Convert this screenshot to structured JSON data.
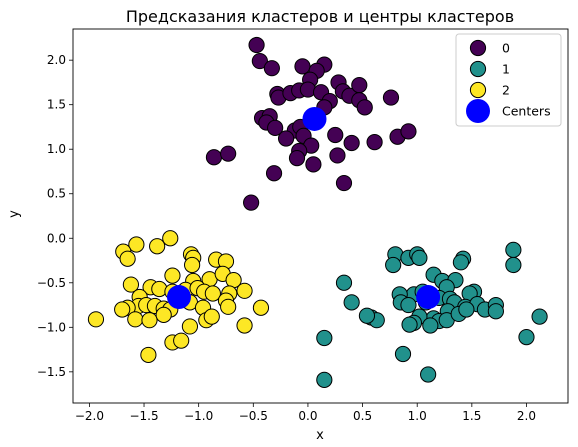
{
  "chart_data": {
    "type": "scatter",
    "title": "Предсказания кластеров и центры кластеров",
    "xlabel": "x",
    "ylabel": "y",
    "xlim": [
      -2.15,
      2.38
    ],
    "ylim": [
      -1.85,
      2.35
    ],
    "xticks": [
      -2.0,
      -1.5,
      -1.0,
      -0.5,
      0.0,
      0.5,
      1.0,
      1.5,
      2.0
    ],
    "xtick_labels": [
      "−2.0",
      "−1.5",
      "−1.0",
      "−0.5",
      "0.0",
      "0.5",
      "1.0",
      "1.5",
      "2.0"
    ],
    "yticks": [
      -1.5,
      -1.0,
      -0.5,
      0.0,
      0.5,
      1.0,
      1.5,
      2.0
    ],
    "ytick_labels": [
      "−1.5",
      "−1.0",
      "−0.5",
      "0.0",
      "0.5",
      "1.0",
      "1.5",
      "2.0"
    ],
    "grid": false,
    "legend_position": "top-right",
    "series": [
      {
        "name": "0",
        "color": "#440154",
        "points": [
          [
            -0.47,
            2.17
          ],
          [
            -0.44,
            1.99
          ],
          [
            -0.33,
            1.91
          ],
          [
            0.15,
            1.95
          ],
          [
            -0.05,
            1.93
          ],
          [
            0.08,
            1.88
          ],
          [
            0.02,
            1.78
          ],
          [
            -0.28,
            1.62
          ],
          [
            -0.27,
            1.58
          ],
          [
            -0.16,
            1.63
          ],
          [
            -0.08,
            1.66
          ],
          [
            0.0,
            1.67
          ],
          [
            0.12,
            1.64
          ],
          [
            0.2,
            1.54
          ],
          [
            0.15,
            1.47
          ],
          [
            0.28,
            1.75
          ],
          [
            0.32,
            1.65
          ],
          [
            0.38,
            1.6
          ],
          [
            0.47,
            1.72
          ],
          [
            0.47,
            1.55
          ],
          [
            0.52,
            1.47
          ],
          [
            0.76,
            1.58
          ],
          [
            -0.42,
            1.35
          ],
          [
            -0.35,
            1.37
          ],
          [
            -0.38,
            1.3
          ],
          [
            -0.3,
            1.24
          ],
          [
            -0.12,
            1.21
          ],
          [
            -0.07,
            1.25
          ],
          [
            -0.04,
            1.15
          ],
          [
            -0.2,
            1.12
          ],
          [
            0.03,
            1.04
          ],
          [
            -0.08,
            0.98
          ],
          [
            -0.1,
            0.9
          ],
          [
            0.25,
            1.16
          ],
          [
            0.4,
            1.07
          ],
          [
            0.61,
            1.08
          ],
          [
            0.82,
            1.14
          ],
          [
            0.92,
            1.2
          ],
          [
            -0.86,
            0.91
          ],
          [
            -0.73,
            0.95
          ],
          [
            0.27,
            0.93
          ],
          [
            0.05,
            0.83
          ],
          [
            -0.31,
            0.73
          ],
          [
            0.33,
            0.62
          ],
          [
            -0.52,
            0.4
          ]
        ]
      },
      {
        "name": "1",
        "color": "#21918c",
        "points": [
          [
            0.8,
            -0.18
          ],
          [
            0.78,
            -0.3
          ],
          [
            0.92,
            -0.22
          ],
          [
            1.0,
            -0.18
          ],
          [
            1.02,
            -0.22
          ],
          [
            1.42,
            -0.23
          ],
          [
            1.4,
            -0.27
          ],
          [
            1.88,
            -0.13
          ],
          [
            1.88,
            -0.3
          ],
          [
            1.15,
            -0.41
          ],
          [
            1.23,
            -0.48
          ],
          [
            1.35,
            -0.47
          ],
          [
            1.27,
            -0.55
          ],
          [
            1.52,
            -0.6
          ],
          [
            1.48,
            -0.62
          ],
          [
            0.97,
            -0.63
          ],
          [
            1.05,
            -0.6
          ],
          [
            0.84,
            -0.63
          ],
          [
            0.85,
            -0.72
          ],
          [
            0.92,
            -0.75
          ],
          [
            1.08,
            -0.72
          ],
          [
            1.2,
            -0.67
          ],
          [
            1.3,
            -0.68
          ],
          [
            1.34,
            -0.72
          ],
          [
            1.44,
            -0.77
          ],
          [
            1.55,
            -0.74
          ],
          [
            1.62,
            -0.8
          ],
          [
            1.72,
            -0.75
          ],
          [
            1.72,
            -0.82
          ],
          [
            1.28,
            -0.82
          ],
          [
            1.15,
            -0.9
          ],
          [
            1.2,
            -0.93
          ],
          [
            1.27,
            -0.92
          ],
          [
            1.02,
            -0.88
          ],
          [
            0.97,
            -0.95
          ],
          [
            0.93,
            -0.97
          ],
          [
            1.12,
            -0.98
          ],
          [
            1.38,
            -0.85
          ],
          [
            1.45,
            -0.8
          ],
          [
            0.33,
            -0.5
          ],
          [
            0.4,
            -0.72
          ],
          [
            0.58,
            -0.89
          ],
          [
            0.63,
            -0.92
          ],
          [
            0.54,
            -0.87
          ],
          [
            2.12,
            -0.88
          ],
          [
            2.0,
            -1.11
          ],
          [
            0.15,
            -1.12
          ],
          [
            0.87,
            -1.3
          ],
          [
            1.1,
            -1.53
          ],
          [
            0.15,
            -1.59
          ]
        ]
      },
      {
        "name": "2",
        "color": "#fde725",
        "points": [
          [
            -1.57,
            -0.07
          ],
          [
            -1.69,
            -0.15
          ],
          [
            -1.65,
            -0.23
          ],
          [
            -1.38,
            -0.09
          ],
          [
            -1.26,
            0.0
          ],
          [
            -1.07,
            -0.18
          ],
          [
            -1.05,
            -0.22
          ],
          [
            -1.06,
            -0.3
          ],
          [
            -0.84,
            -0.24
          ],
          [
            -0.75,
            -0.26
          ],
          [
            -1.62,
            -0.52
          ],
          [
            -1.24,
            -0.42
          ],
          [
            -1.05,
            -0.48
          ],
          [
            -0.9,
            -0.46
          ],
          [
            -0.78,
            -0.4
          ],
          [
            -0.68,
            -0.47
          ],
          [
            -0.58,
            -0.59
          ],
          [
            -1.44,
            -0.55
          ],
          [
            -1.36,
            -0.57
          ],
          [
            -1.24,
            -0.6
          ],
          [
            -1.12,
            -0.58
          ],
          [
            -1.01,
            -0.56
          ],
          [
            -0.95,
            -0.6
          ],
          [
            -0.87,
            -0.62
          ],
          [
            -0.72,
            -0.62
          ],
          [
            -1.54,
            -0.66
          ],
          [
            -1.55,
            -0.76
          ],
          [
            -1.65,
            -0.78
          ],
          [
            -1.48,
            -0.75
          ],
          [
            -1.4,
            -0.76
          ],
          [
            -1.32,
            -0.79
          ],
          [
            -1.26,
            -0.8
          ],
          [
            -1.08,
            -0.72
          ],
          [
            -0.96,
            -0.78
          ],
          [
            -0.75,
            -0.7
          ],
          [
            -0.73,
            -0.77
          ],
          [
            -0.43,
            -0.78
          ],
          [
            -1.7,
            -0.8
          ],
          [
            -1.58,
            -0.91
          ],
          [
            -1.45,
            -0.92
          ],
          [
            -1.32,
            -0.86
          ],
          [
            -1.08,
            -0.99
          ],
          [
            -0.93,
            -0.92
          ],
          [
            -0.88,
            -0.88
          ],
          [
            -0.58,
            -0.98
          ],
          [
            -1.94,
            -0.91
          ],
          [
            -1.24,
            -1.17
          ],
          [
            -1.16,
            -1.15
          ],
          [
            -1.46,
            -1.31
          ]
        ]
      }
    ],
    "centers": {
      "name": "Centers",
      "color": "#0000ff",
      "points": [
        [
          0.06,
          1.34
        ],
        [
          1.1,
          -0.66
        ],
        [
          -1.18,
          -0.66
        ]
      ]
    },
    "legend": [
      {
        "label": "0",
        "color": "#440154"
      },
      {
        "label": "1",
        "color": "#21918c"
      },
      {
        "label": "2",
        "color": "#fde725"
      },
      {
        "label": "Centers",
        "color": "#0000ff"
      }
    ]
  }
}
